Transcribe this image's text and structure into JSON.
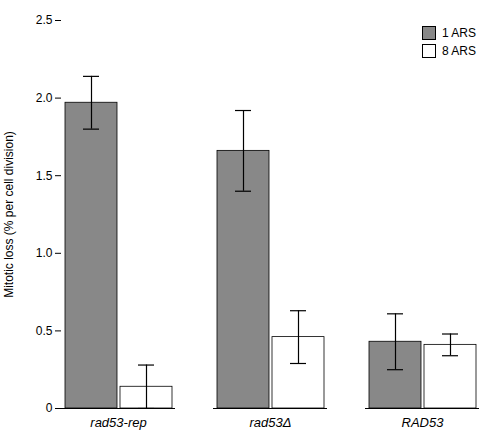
{
  "chart_data": {
    "type": "bar",
    "categories": [
      "rad53-rep",
      "rad53Δ",
      "RAD53"
    ],
    "series": [
      {
        "name": "1 ARS",
        "color": "#888888",
        "values": [
          1.97,
          1.66,
          0.43
        ],
        "errors": [
          0.17,
          0.26,
          0.18
        ]
      },
      {
        "name": "8 ARS",
        "color": "#ffffff",
        "values": [
          0.14,
          0.46,
          0.41
        ],
        "errors": [
          0.14,
          0.17,
          0.07
        ]
      }
    ],
    "ylabel": "Mitotic loss (% per cell division)",
    "ylim": [
      0,
      2.5
    ],
    "yticks": [
      0,
      0.5,
      {
        "value": 1,
        "label": "1.0"
      },
      1.5,
      {
        "value": 2,
        "label": "2.0"
      },
      2.5
    ],
    "legend": "upper right",
    "grid": false
  }
}
